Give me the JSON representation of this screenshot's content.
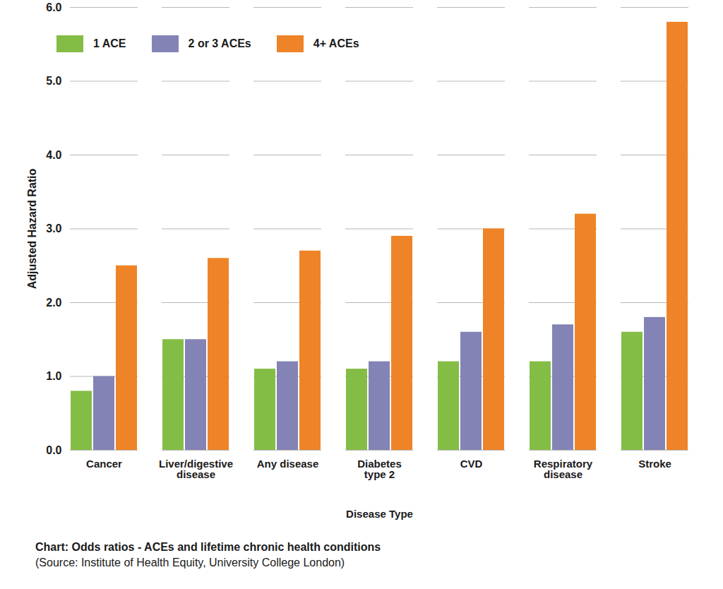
{
  "chart_data": {
    "type": "bar",
    "title": "Chart: Odds ratios - ACEs and lifetime chronic health conditions",
    "caption": "(Source: Institute of Health Equity, University College London)",
    "x_label": "Disease Type",
    "y_label": "Adjusted Hazard Ratio",
    "categories": [
      "Cancer",
      "Liver/digestive disease",
      "Any disease",
      "Diabetes type 2",
      "CVD",
      "Respiratory disease",
      "Stroke"
    ],
    "series": [
      {
        "name": "1 ACE",
        "color": "#84bd45",
        "values": [
          0.8,
          1.5,
          1.1,
          1.1,
          1.2,
          1.2,
          1.6
        ]
      },
      {
        "name": "2 or 3 ACEs",
        "color": "#8383b5",
        "values": [
          1.0,
          1.5,
          1.2,
          1.2,
          1.6,
          1.7,
          1.8
        ]
      },
      {
        "name": "4+ ACEs",
        "color": "#ee8427",
        "values": [
          2.5,
          2.6,
          2.7,
          2.9,
          3.0,
          3.2,
          5.8
        ]
      }
    ],
    "ylim": [
      0,
      6
    ],
    "yticks": [
      0,
      1,
      2,
      3,
      4,
      5,
      6
    ],
    "grid": true,
    "legend": "top-left"
  }
}
